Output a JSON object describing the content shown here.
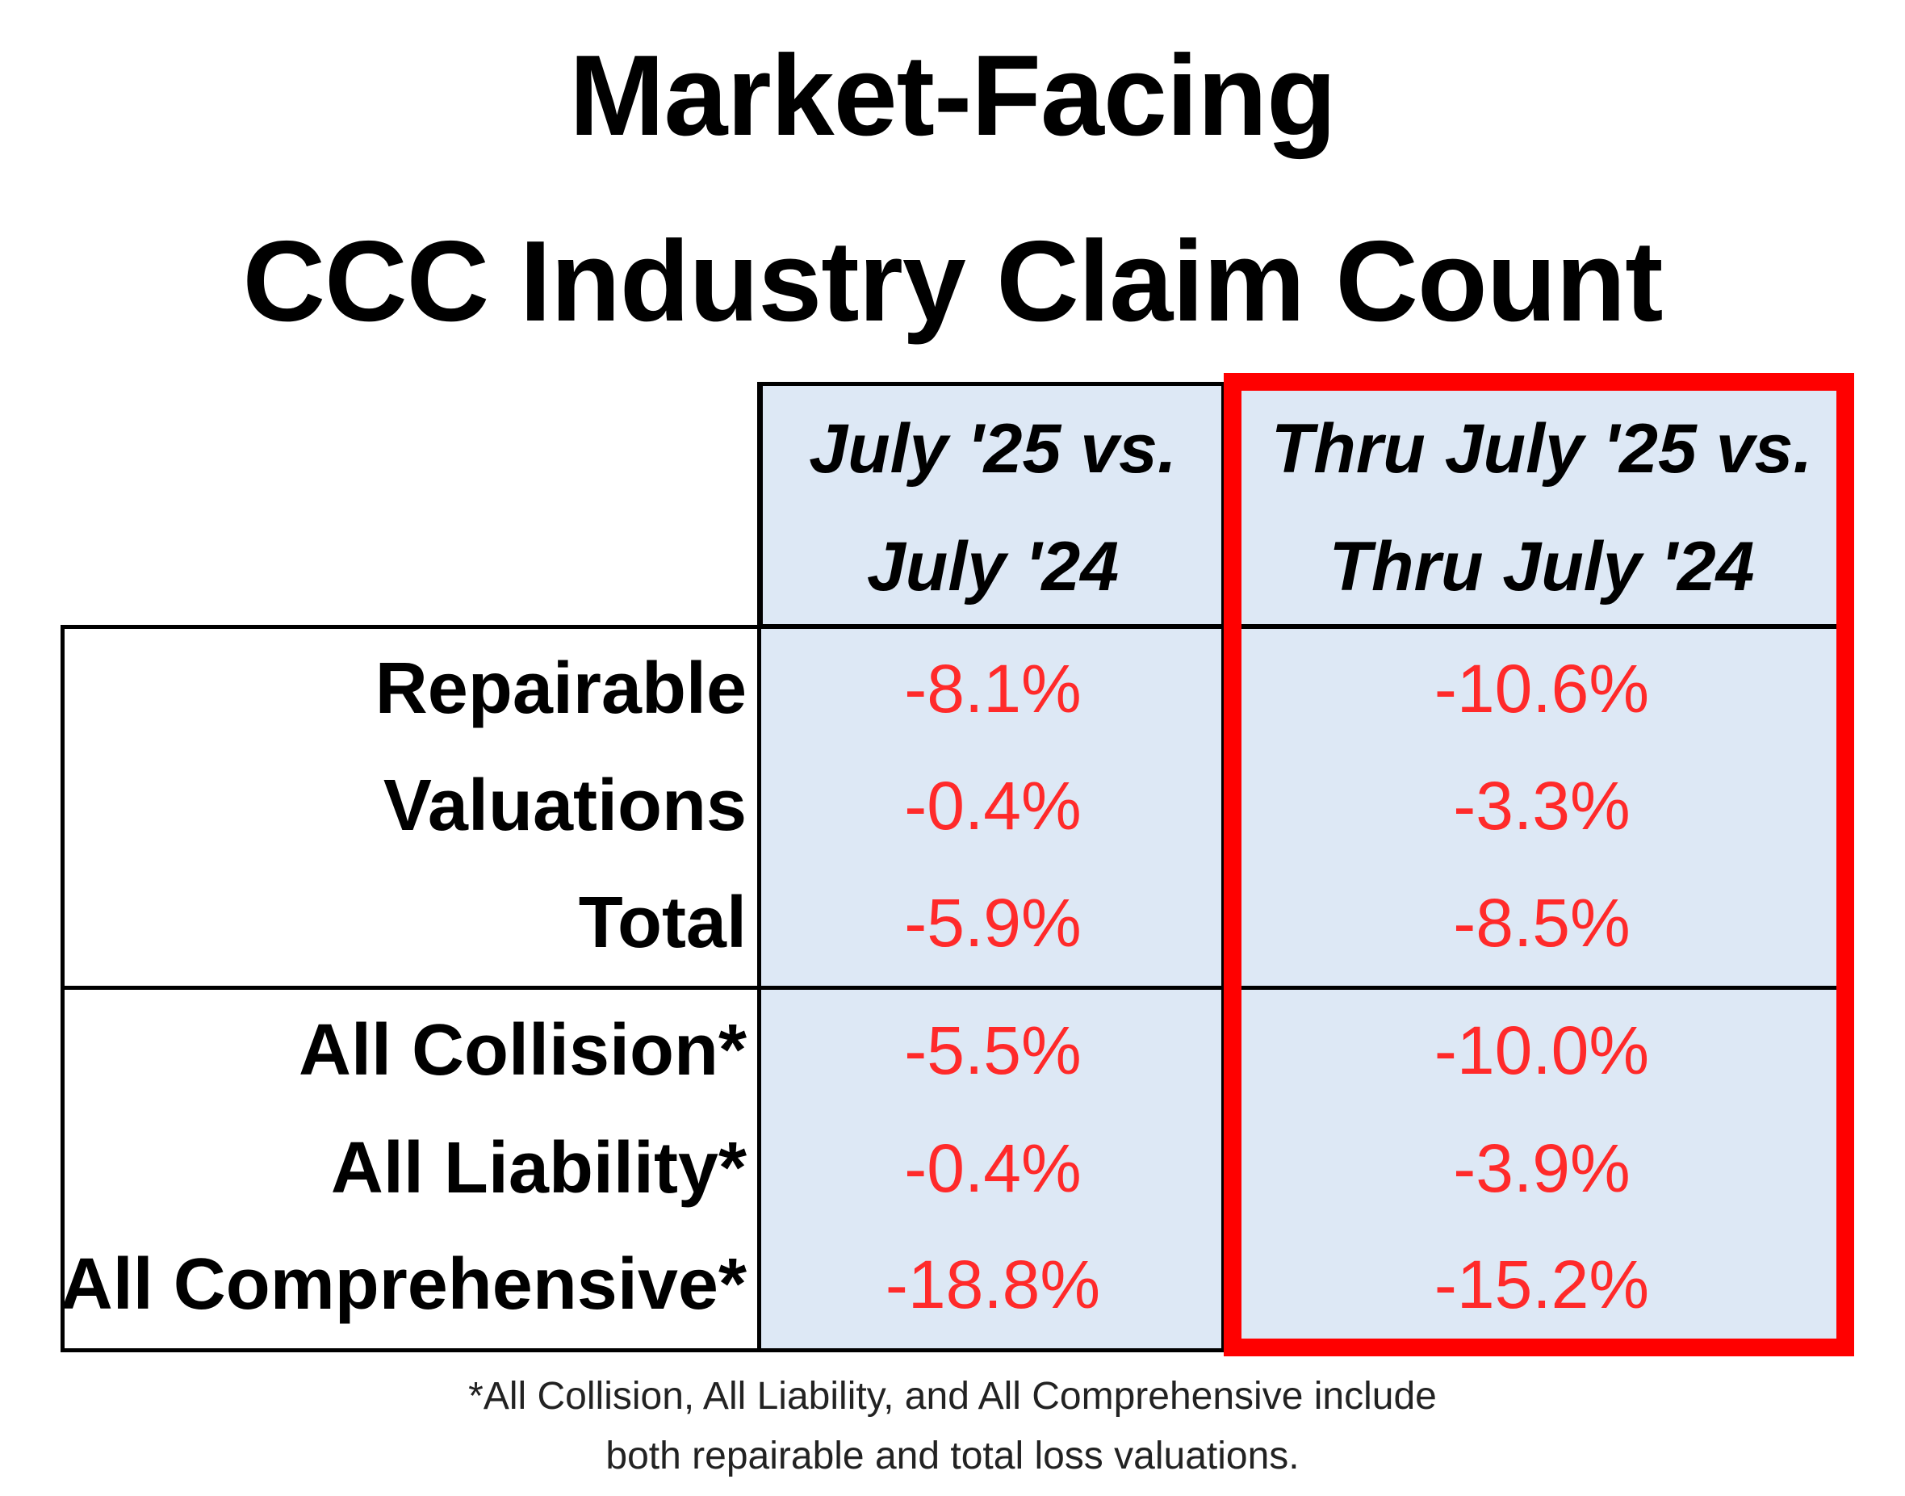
{
  "title": {
    "line1": "Market-Facing",
    "line2": "CCC Industry Claim Count"
  },
  "headers": {
    "col1_line1": "July '25 vs.",
    "col1_line2": "July '24",
    "col2_line1": "Thru July '25 vs.",
    "col2_line2": "Thru July '24"
  },
  "rows": [
    {
      "label": "Repairable",
      "month": "-8.1%",
      "ytd": "-10.6%"
    },
    {
      "label": "Valuations",
      "month": "-0.4%",
      "ytd": "-3.3%"
    },
    {
      "label": "Total",
      "month": "-5.9%",
      "ytd": "-8.5%"
    },
    {
      "label": "All Collision*",
      "month": "-5.5%",
      "ytd": "-10.0%"
    },
    {
      "label": "All Liability*",
      "month": "-0.4%",
      "ytd": "-3.9%"
    },
    {
      "label": "All Comprehensive*",
      "month": "-18.8%",
      "ytd": "-15.2%"
    }
  ],
  "footnote": {
    "line1": "*All Collision, All Liability, and All Comprehensive include",
    "line2": "both repairable and total loss valuations."
  },
  "colors": {
    "value_text": "#ff2a2a",
    "column_fill": "#dde8f5",
    "highlight_border": "#ff0000"
  }
}
